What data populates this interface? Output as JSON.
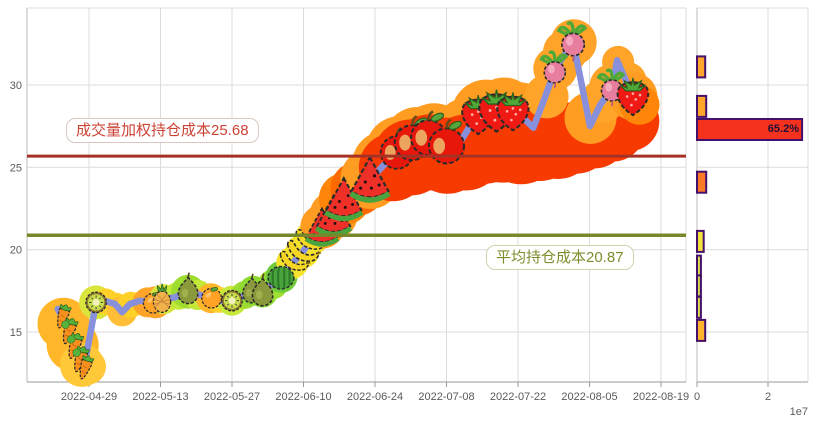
{
  "figure": {
    "background": "#ffffff",
    "accent_colors": {
      "price_line": "#8890DC",
      "vwap_line": "#A63226",
      "avg_line": "#76882A",
      "gridline": "#DCDCDC",
      "tick_text": "#5A5A5A",
      "bar_border": "#45106B"
    }
  },
  "chart_data": [
    {
      "type": "line",
      "title": "",
      "x_unit": "days_since_2022-04-29",
      "x_tick_labels": [
        "2022-04-29",
        "2022-05-13",
        "2022-05-27",
        "2022-06-10",
        "2022-06-24",
        "2022-07-08",
        "2022-07-22",
        "2022-08-05",
        "2022-08-19"
      ],
      "y_ticks": [
        "15",
        "20",
        "25",
        "30"
      ],
      "ylim": [
        12.0,
        34.7
      ],
      "grid": true,
      "hlines": [
        {
          "value": 25.68,
          "label": "成交量加权持仓成本25.68",
          "line_color": "#A63226",
          "text_color": "#CB4335"
        },
        {
          "value": 20.87,
          "label": "平均持仓成本20.87",
          "line_color": "#76882A",
          "text_color": "#7E8E2E"
        }
      ],
      "series": [
        {
          "name": "price",
          "color": "#8890DC",
          "points": [
            [
              -6.1,
              16.4
            ],
            [
              -4.7,
              15.6
            ],
            [
              -3.3,
              14.5
            ],
            [
              -2.2,
              13.6
            ],
            [
              -1,
              12.8
            ],
            [
              1.4,
              16.8
            ],
            [
              3.1,
              16.9
            ],
            [
              5.1,
              16.7
            ],
            [
              6.5,
              16.2
            ],
            [
              8,
              16.7
            ],
            [
              10,
              16.9
            ],
            [
              12.9,
              16.8
            ],
            [
              14.5,
              17
            ],
            [
              16.8,
              17.1
            ],
            [
              19.4,
              17.5
            ],
            [
              21.1,
              17.3
            ],
            [
              23.7,
              17.1
            ],
            [
              26,
              16.9
            ],
            [
              28,
              16.9
            ],
            [
              30.2,
              17.2
            ],
            [
              31.9,
              17.5
            ],
            [
              33.9,
              17.4
            ],
            [
              35.8,
              17.9
            ],
            [
              37.6,
              18.3
            ],
            [
              39.9,
              19.2
            ],
            [
              41.7,
              19.8
            ],
            [
              43.3,
              20.5
            ],
            [
              45.6,
              21.3
            ],
            [
              47.8,
              22
            ],
            [
              49.7,
              23
            ],
            [
              52.5,
              23.6
            ],
            [
              55,
              24.2
            ],
            [
              57.6,
              25.1
            ],
            [
              60.3,
              25.9
            ],
            [
              63.2,
              26.5
            ],
            [
              66.4,
              26.8
            ],
            [
              69.7,
              26.2
            ],
            [
              72.6,
              26.5
            ],
            [
              76,
              28.2
            ],
            [
              79.5,
              28.4
            ],
            [
              83,
              28.4
            ],
            [
              85.4,
              27.9
            ],
            [
              87,
              27.4
            ],
            [
              89.1,
              29.1
            ],
            [
              91.2,
              30.9
            ],
            [
              93,
              31.8
            ],
            [
              94.8,
              32.6
            ],
            [
              96.5,
              30
            ],
            [
              98.1,
              27.5
            ],
            [
              100.1,
              28.8
            ],
            [
              102.4,
              29.8
            ],
            [
              103.4,
              31.5
            ],
            [
              105.1,
              30.3
            ],
            [
              106.3,
              29.3
            ],
            [
              107.9,
              29
            ]
          ]
        }
      ],
      "fruit_markers": [
        {
          "day": -5.2,
          "price": 15.9,
          "type": "carrot",
          "size": 24
        },
        {
          "day": -4,
          "price": 15,
          "type": "carrot",
          "size": 26
        },
        {
          "day": -2.9,
          "price": 14.1,
          "type": "carrot",
          "size": 26
        },
        {
          "day": -1.8,
          "price": 13.3,
          "type": "carrot",
          "size": 26
        },
        {
          "day": -0.8,
          "price": 12.8,
          "type": "carrot",
          "size": 24
        },
        {
          "day": -4.6,
          "price": 15.45,
          "type": "sprout",
          "size": 12
        },
        {
          "day": -3.5,
          "price": 14.55,
          "type": "sprout",
          "size": 12
        },
        {
          "day": -2.4,
          "price": 13.75,
          "type": "sprout",
          "size": 12
        },
        {
          "day": 1.4,
          "price": 16.8,
          "type": "kiwi",
          "size": 26
        },
        {
          "day": 12.6,
          "price": 16.75,
          "type": "orange",
          "size": 25
        },
        {
          "day": 14.3,
          "price": 16.95,
          "type": "pineapple",
          "size": 27
        },
        {
          "day": 19.4,
          "price": 17.5,
          "type": "pear",
          "size": 30
        },
        {
          "day": 24,
          "price": 17.05,
          "type": "orange",
          "size": 25
        },
        {
          "day": 28,
          "price": 16.9,
          "type": "kiwi",
          "size": 26
        },
        {
          "day": 31.9,
          "price": 17.5,
          "type": "pear",
          "size": 28
        },
        {
          "day": 34,
          "price": 17.4,
          "type": "pear",
          "size": 31
        },
        {
          "day": 37.6,
          "price": 18.3,
          "type": "watermelon-whole",
          "size": 30
        },
        {
          "day": 40.2,
          "price": 19.3,
          "type": "banana",
          "size": 30
        },
        {
          "day": 41.9,
          "price": 19.9,
          "type": "banana",
          "size": 33
        },
        {
          "day": 43.4,
          "price": 20.6,
          "type": "banana",
          "size": 31
        },
        {
          "day": 45.6,
          "price": 21.4,
          "type": "watermelon-slice",
          "size": 36
        },
        {
          "day": 47.9,
          "price": 22.1,
          "type": "watermelon-slice",
          "size": 39
        },
        {
          "day": 49.9,
          "price": 23.1,
          "type": "watermelon-slice",
          "size": 41
        },
        {
          "day": 55,
          "price": 24.3,
          "type": "watermelon-slice",
          "size": 43
        },
        {
          "day": 60.3,
          "price": 25.9,
          "type": "apple",
          "size": 38
        },
        {
          "day": 63.3,
          "price": 26.5,
          "type": "apple",
          "size": 41
        },
        {
          "day": 66.5,
          "price": 26.8,
          "type": "apple",
          "size": 41
        },
        {
          "day": 70,
          "price": 26.3,
          "type": "apple",
          "size": 41
        },
        {
          "day": 76.2,
          "price": 28.2,
          "type": "strawberry",
          "size": 42
        },
        {
          "day": 79.8,
          "price": 28.45,
          "type": "strawberry",
          "size": 45
        },
        {
          "day": 83,
          "price": 28.4,
          "type": "strawberry",
          "size": 41
        },
        {
          "day": 91.2,
          "price": 30.9,
          "type": "radish",
          "size": 31
        },
        {
          "day": 94.8,
          "price": 32.6,
          "type": "radish",
          "size": 33
        },
        {
          "day": 102.4,
          "price": 29.8,
          "type": "radish",
          "size": 31
        },
        {
          "day": 106.5,
          "price": 29.3,
          "type": "strawberry",
          "size": 40
        }
      ],
      "halo_blobs": [
        {
          "day": -5,
          "price": 15.5,
          "r": 26,
          "color": "#FFB628"
        },
        {
          "day": -3.2,
          "price": 14.2,
          "r": 26,
          "color": "#FFB628"
        },
        {
          "day": -1.4,
          "price": 13,
          "r": 22,
          "color": "#FFC838"
        },
        {
          "day": -0.2,
          "price": 12.9,
          "r": 18,
          "color": "#FFC838"
        },
        {
          "day": 1.4,
          "price": 16.8,
          "r": 17,
          "color": "#D9E53C"
        },
        {
          "day": 3.3,
          "price": 16.85,
          "r": 13,
          "color": "#FFD028"
        },
        {
          "day": 5.3,
          "price": 16.6,
          "r": 13,
          "color": "#FFD028"
        },
        {
          "day": 6.5,
          "price": 16.25,
          "r": 15,
          "color": "#FFBE36"
        },
        {
          "day": 8.2,
          "price": 16.65,
          "r": 13,
          "color": "#FFD028"
        },
        {
          "day": 11.5,
          "price": 16.8,
          "r": 15,
          "color": "#FFA428"
        },
        {
          "day": 13,
          "price": 16.8,
          "r": 16,
          "color": "#FFA428"
        },
        {
          "day": 14.6,
          "price": 17,
          "r": 15,
          "color": "#D9E53C"
        },
        {
          "day": 17.5,
          "price": 17.2,
          "r": 14,
          "color": "#C3E838"
        },
        {
          "day": 19.4,
          "price": 17.45,
          "r": 17,
          "color": "#9FDC30"
        },
        {
          "day": 21.3,
          "price": 17.25,
          "r": 15,
          "color": "#C3E838"
        },
        {
          "day": 23.9,
          "price": 17.05,
          "r": 15,
          "color": "#FFB628"
        },
        {
          "day": 25.5,
          "price": 16.95,
          "r": 13,
          "color": "#FFD028"
        },
        {
          "day": 28,
          "price": 16.9,
          "r": 15,
          "color": "#C9E93A"
        },
        {
          "day": 30.5,
          "price": 17.25,
          "r": 14,
          "color": "#9FDC30"
        },
        {
          "day": 32.2,
          "price": 17.5,
          "r": 15,
          "color": "#8FD930"
        },
        {
          "day": 34,
          "price": 17.4,
          "r": 15,
          "color": "#8FD930"
        },
        {
          "day": 36,
          "price": 17.9,
          "r": 15,
          "color": "#9FE030"
        },
        {
          "day": 37.7,
          "price": 18.35,
          "r": 16,
          "color": "#6FCB3A"
        },
        {
          "day": 39.8,
          "price": 19.2,
          "r": 16,
          "color": "#F5E32E"
        },
        {
          "day": 41.8,
          "price": 19.9,
          "r": 17,
          "color": "#F5E32E"
        },
        {
          "day": 43.6,
          "price": 20.7,
          "r": 17,
          "color": "#F5E32E"
        },
        {
          "day": 45.7,
          "price": 21.4,
          "r": 22,
          "color": "#FF9D23"
        },
        {
          "day": 47.9,
          "price": 22.1,
          "r": 24,
          "color": "#FF9D23"
        },
        {
          "day": 50.1,
          "price": 23.1,
          "r": 26,
          "color": "#FF8608"
        },
        {
          "day": 52.6,
          "price": 23.7,
          "r": 27,
          "color": "#FF6A00"
        },
        {
          "day": 55.1,
          "price": 24.3,
          "r": 30,
          "color": "#FF9D23"
        },
        {
          "day": 58,
          "price": 25.2,
          "r": 33,
          "color": "#FF9D23"
        },
        {
          "day": 61,
          "price": 26,
          "r": 35,
          "color": "#FF9D23"
        },
        {
          "day": 64.3,
          "price": 26.6,
          "r": 34,
          "color": "#FF9D23"
        },
        {
          "day": 67.6,
          "price": 26.7,
          "r": 36,
          "color": "#FF9D23"
        },
        {
          "day": 71,
          "price": 26.3,
          "r": 34,
          "color": "#FF9D23"
        },
        {
          "day": 74.3,
          "price": 27.2,
          "r": 34,
          "color": "#FF9D23"
        },
        {
          "day": 77.8,
          "price": 28.2,
          "r": 35,
          "color": "#FF9D23"
        },
        {
          "day": 81.3,
          "price": 28.45,
          "r": 33,
          "color": "#FF9D23"
        },
        {
          "day": 84.3,
          "price": 28.1,
          "r": 34,
          "color": "#FF9D23"
        },
        {
          "day": 59.5,
          "price": 25,
          "r": 34,
          "color": "#F63A00"
        },
        {
          "day": 63,
          "price": 25.6,
          "r": 38,
          "color": "#F63A00"
        },
        {
          "day": 66.6,
          "price": 25.9,
          "r": 38,
          "color": "#F63A00"
        },
        {
          "day": 70.2,
          "price": 25.7,
          "r": 38,
          "color": "#F63A00"
        },
        {
          "day": 73.8,
          "price": 25.9,
          "r": 38,
          "color": "#F63A00"
        },
        {
          "day": 77.4,
          "price": 26.3,
          "r": 38,
          "color": "#F63A00"
        },
        {
          "day": 81,
          "price": 26.5,
          "r": 40,
          "color": "#F63A00"
        },
        {
          "day": 84.6,
          "price": 26.4,
          "r": 40,
          "color": "#F63A00"
        },
        {
          "day": 88.2,
          "price": 26.6,
          "r": 40,
          "color": "#F63A00"
        },
        {
          "day": 91.8,
          "price": 26.6,
          "r": 38,
          "color": "#F63A00"
        },
        {
          "day": 95.4,
          "price": 26.8,
          "r": 36,
          "color": "#F63A00"
        },
        {
          "day": 99,
          "price": 27,
          "r": 34,
          "color": "#F63A00"
        },
        {
          "day": 102.6,
          "price": 27.3,
          "r": 32,
          "color": "#F63A00"
        },
        {
          "day": 105.8,
          "price": 27.8,
          "r": 30,
          "color": "#F63A00"
        },
        {
          "day": 89.6,
          "price": 29.3,
          "r": 22,
          "color": "#FFA428"
        },
        {
          "day": 91.3,
          "price": 31,
          "r": 22,
          "color": "#FFA428"
        },
        {
          "day": 93.2,
          "price": 32,
          "r": 22,
          "color": "#FFA428"
        },
        {
          "day": 94.9,
          "price": 32.6,
          "r": 23,
          "color": "#FFA428"
        },
        {
          "day": 98.2,
          "price": 28,
          "r": 26,
          "color": "#FF9D23"
        },
        {
          "day": 100.5,
          "price": 29,
          "r": 22,
          "color": "#FFA428"
        },
        {
          "day": 102.5,
          "price": 29.9,
          "r": 23,
          "color": "#FFA428"
        },
        {
          "day": 103.6,
          "price": 31.4,
          "r": 16,
          "color": "#FFA428"
        },
        {
          "day": 105.3,
          "price": 30.2,
          "r": 20,
          "color": "#FFA428"
        },
        {
          "day": 106.6,
          "price": 29.3,
          "r": 24,
          "color": "#FF9D23"
        },
        {
          "day": 107.8,
          "price": 28.8,
          "r": 20,
          "color": "#FF8608"
        }
      ]
    },
    {
      "type": "bar",
      "orientation": "horizontal",
      "x_tick_labels": [
        "0",
        "2"
      ],
      "scale_multiplier_label": "1e7",
      "xlim_e7": [
        0,
        3.2
      ],
      "grid": true,
      "bars": [
        {
          "price": 31.1,
          "value_e7": 0.23,
          "label": "",
          "color": "#FFA52B"
        },
        {
          "price": 28.7,
          "value_e7": 0.26,
          "label": "",
          "color": "#FFA52B"
        },
        {
          "price": 27.3,
          "value_e7": 2.96,
          "label": "65.2%",
          "color": "#F5321E"
        },
        {
          "price": 24.1,
          "value_e7": 0.26,
          "label": "",
          "color": "#FF7A28"
        },
        {
          "price": 20.5,
          "value_e7": 0.19,
          "label": "",
          "color": "#F2E23C"
        },
        {
          "price": 19.0,
          "value_e7": 0.11,
          "label": "",
          "color": "#DCE04E"
        },
        {
          "price": 17.8,
          "value_e7": 0.11,
          "label": "",
          "color": "#CFDC4E"
        },
        {
          "price": 16.5,
          "value_e7": 0.11,
          "label": "",
          "color": "#DCE04E"
        },
        {
          "price": 15.1,
          "value_e7": 0.23,
          "label": "",
          "color": "#FFB42B"
        }
      ]
    }
  ]
}
